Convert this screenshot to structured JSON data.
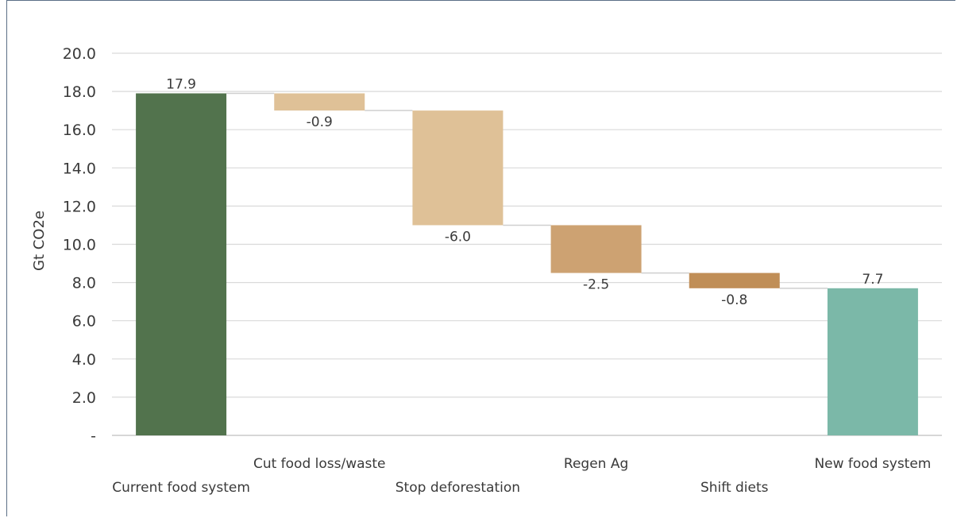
{
  "chart_data": {
    "type": "bar",
    "subtype": "waterfall",
    "title": "",
    "ylabel": "Gt CO2e",
    "xlabel": "",
    "ylim": [
      0,
      20
    ],
    "grid": true,
    "y_tick_labels": [
      "-",
      "2.0",
      "4.0",
      "6.0",
      "8.0",
      "10.0",
      "12.0",
      "14.0",
      "16.0",
      "18.0",
      "20.0"
    ],
    "categories": [
      "Current food system",
      "Cut food loss/waste",
      "Stop deforestation",
      "Regen Ag",
      "Shift diets",
      "New food system"
    ],
    "values": [
      17.9,
      -0.9,
      -6.0,
      -2.5,
      -0.8,
      7.7
    ],
    "data_labels": [
      "17.9",
      "-0.9",
      "-6.0",
      "-2.5",
      "-0.8",
      "7.7"
    ],
    "bar_kinds": [
      "total",
      "delta",
      "delta",
      "delta",
      "delta",
      "total"
    ],
    "colors": [
      "#52734d",
      "#dfc197",
      "#dfc197",
      "#cda272",
      "#c08e57",
      "#7bb8a8"
    ]
  }
}
